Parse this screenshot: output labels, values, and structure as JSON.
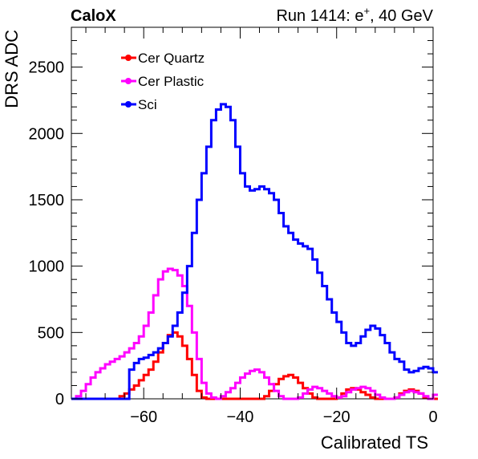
{
  "header": {
    "experiment": "CaloX",
    "run_label": "Run 1414: e",
    "run_sup": "+",
    "run_suffix": ", 40 GeV"
  },
  "chart_data": {
    "type": "line",
    "style": "step-histogram",
    "xlabel": "Calibrated TS",
    "ylabel": "DRS ADC",
    "xlim": [
      -75,
      0
    ],
    "ylim": [
      0,
      2800
    ],
    "xticks": [
      -60,
      -40,
      -20,
      0
    ],
    "xtick_labels": [
      "−60",
      "−40",
      "−20",
      "0"
    ],
    "yticks": [
      0,
      500,
      1000,
      1500,
      2000,
      2500
    ],
    "ytick_labels": [
      "0",
      "500",
      "1000",
      "1500",
      "2000",
      "2500"
    ],
    "legend_position": "top-left",
    "grid": false,
    "bin_width": 1,
    "x_start": -75,
    "series": [
      {
        "name": "Cer Quartz",
        "color": "#ff0000",
        "values": [
          0,
          0,
          0,
          0,
          0,
          0,
          0,
          0,
          0,
          0,
          20,
          40,
          70,
          100,
          140,
          180,
          220,
          280,
          350,
          420,
          480,
          500,
          470,
          400,
          300,
          180,
          60,
          10,
          0,
          0,
          0,
          0,
          0,
          0,
          0,
          0,
          0,
          0,
          0,
          0,
          20,
          60,
          110,
          150,
          170,
          180,
          160,
          120,
          80,
          40,
          10,
          0,
          0,
          0,
          0,
          10,
          40,
          70,
          80,
          70,
          50,
          30,
          10,
          0,
          0,
          0,
          0,
          10,
          40,
          60,
          70,
          60,
          40,
          10,
          0,
          0
        ]
      },
      {
        "name": "Cer Plastic",
        "color": "#ff00ff",
        "values": [
          0,
          20,
          60,
          110,
          160,
          200,
          230,
          260,
          280,
          300,
          320,
          350,
          380,
          420,
          470,
          550,
          650,
          780,
          900,
          960,
          980,
          970,
          930,
          850,
          700,
          500,
          300,
          120,
          40,
          10,
          0,
          20,
          50,
          80,
          120,
          160,
          190,
          210,
          220,
          200,
          160,
          110,
          60,
          20,
          0,
          0,
          0,
          10,
          40,
          70,
          90,
          80,
          60,
          40,
          20,
          10,
          20,
          50,
          70,
          80,
          90,
          80,
          60,
          30,
          10,
          0,
          0,
          10,
          30,
          50,
          60,
          50,
          40,
          20,
          0,
          30
        ]
      },
      {
        "name": "Sci",
        "color": "#0000ff",
        "values": [
          0,
          0,
          0,
          0,
          0,
          0,
          0,
          0,
          0,
          0,
          0,
          0,
          220,
          270,
          300,
          310,
          330,
          350,
          380,
          420,
          470,
          550,
          650,
          800,
          1000,
          1250,
          1500,
          1700,
          1900,
          2100,
          2180,
          2220,
          2200,
          2100,
          1900,
          1700,
          1600,
          1570,
          1580,
          1600,
          1580,
          1550,
          1500,
          1400,
          1300,
          1250,
          1200,
          1170,
          1150,
          1130,
          1050,
          950,
          850,
          750,
          650,
          580,
          500,
          420,
          400,
          420,
          470,
          520,
          550,
          530,
          480,
          420,
          350,
          300,
          280,
          220,
          200,
          210,
          230,
          240,
          230,
          200
        ]
      }
    ]
  }
}
